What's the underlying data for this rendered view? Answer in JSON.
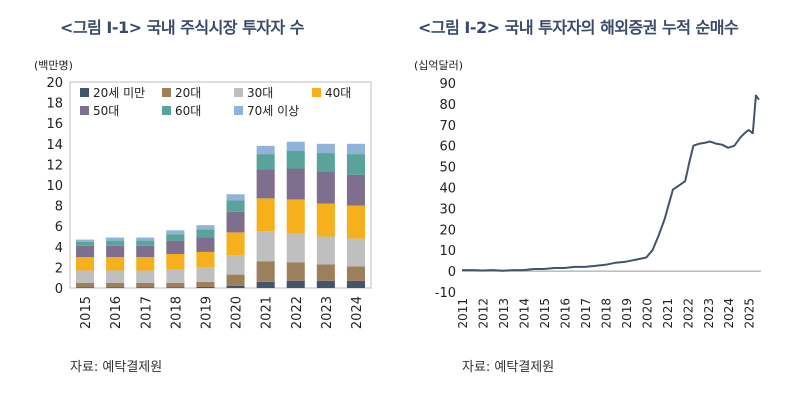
{
  "left_title": "<그림 Ⅰ-1> 국내 주식시장 투자자 수",
  "right_title": "<그림 Ⅰ-2> 국내 투자자의 해외증권 누적 순매수",
  "left_unit": "(백만명)",
  "right_unit": "(십억달러)",
  "left_source": "자료: 예탁결제원",
  "right_source": "자료: 예탁결제원",
  "chart_data": [
    {
      "type": "bar",
      "stacked": true,
      "title": "<그림 Ⅰ-1> 국내 주식시장 투자자 수",
      "ylabel": "(백만명)",
      "xlabel": "",
      "ylim": [
        0,
        20
      ],
      "yticks": [
        0,
        2,
        4,
        6,
        8,
        10,
        12,
        14,
        16,
        18,
        20
      ],
      "legend_position": "top-left",
      "categories": [
        "2015",
        "2016",
        "2017",
        "2018",
        "2019",
        "2020",
        "2021",
        "2022",
        "2023",
        "2024"
      ],
      "series": [
        {
          "name": "20세 미만",
          "color": "#44546a",
          "values": [
            0.05,
            0.05,
            0.05,
            0.05,
            0.1,
            0.2,
            0.6,
            0.7,
            0.7,
            0.7
          ]
        },
        {
          "name": "20대",
          "color": "#9e7f5c",
          "values": [
            0.45,
            0.45,
            0.45,
            0.45,
            0.5,
            1.1,
            2.0,
            1.8,
            1.6,
            1.4
          ]
        },
        {
          "name": "30대",
          "color": "#bfbfbf",
          "values": [
            1.2,
            1.2,
            1.2,
            1.3,
            1.4,
            1.9,
            2.9,
            2.8,
            2.7,
            2.7
          ]
        },
        {
          "name": "40대",
          "color": "#f5b01c",
          "values": [
            1.3,
            1.3,
            1.3,
            1.5,
            1.5,
            2.2,
            3.2,
            3.3,
            3.2,
            3.2
          ]
        },
        {
          "name": "50대",
          "color": "#7e6f8f",
          "values": [
            1.1,
            1.1,
            1.1,
            1.3,
            1.4,
            2.0,
            2.8,
            3.0,
            3.1,
            3.0
          ]
        },
        {
          "name": "60대",
          "color": "#5aa39a",
          "values": [
            0.4,
            0.5,
            0.5,
            0.6,
            0.8,
            1.1,
            1.5,
            1.7,
            1.8,
            2.0
          ]
        },
        {
          "name": "70세 이상",
          "color": "#8fb3d9",
          "values": [
            0.2,
            0.3,
            0.3,
            0.4,
            0.4,
            0.6,
            0.8,
            0.9,
            0.9,
            1.0
          ]
        }
      ]
    },
    {
      "type": "line",
      "title": "<그림 Ⅰ-2> 국내 투자자의 해외증권 누적 순매수",
      "ylabel": "(십억달러)",
      "xlabel": "",
      "ylim": [
        -10,
        90
      ],
      "yticks": [
        -10,
        0,
        10,
        20,
        30,
        40,
        50,
        60,
        70,
        80,
        90
      ],
      "xlim": [
        2011,
        2025.6
      ],
      "xticks": [
        "2011",
        "2012",
        "2013",
        "2014",
        "2015",
        "2016",
        "2017",
        "2018",
        "2019",
        "2020",
        "2021",
        "2022",
        "2023",
        "2024",
        "2025"
      ],
      "zero_line": true,
      "series": [
        {
          "name": "누적 순매수",
          "color": "#44546a",
          "x": [
            2011.0,
            2011.5,
            2012.0,
            2012.5,
            2013.0,
            2013.5,
            2014.0,
            2014.5,
            2015.0,
            2015.5,
            2016.0,
            2016.5,
            2017.0,
            2017.5,
            2018.0,
            2018.5,
            2019.0,
            2019.5,
            2020.0,
            2020.3,
            2020.6,
            2020.9,
            2021.1,
            2021.3,
            2021.6,
            2021.9,
            2022.1,
            2022.3,
            2022.6,
            2022.9,
            2023.1,
            2023.4,
            2023.7,
            2024.0,
            2024.3,
            2024.6,
            2024.8,
            2025.0,
            2025.2,
            2025.35,
            2025.5
          ],
          "y": [
            0.5,
            0.5,
            0.3,
            0.5,
            0.2,
            0.5,
            0.5,
            1.0,
            1.0,
            1.5,
            1.5,
            2.0,
            2.0,
            2.5,
            3.0,
            4.0,
            4.5,
            5.5,
            6.5,
            10.0,
            17.0,
            25.0,
            32.0,
            39.0,
            41.0,
            43.0,
            52.0,
            60.0,
            61.0,
            61.5,
            62.0,
            61.0,
            60.5,
            59.0,
            60.0,
            64.0,
            66.0,
            67.5,
            66.0,
            84.0,
            82.0
          ]
        }
      ]
    }
  ]
}
